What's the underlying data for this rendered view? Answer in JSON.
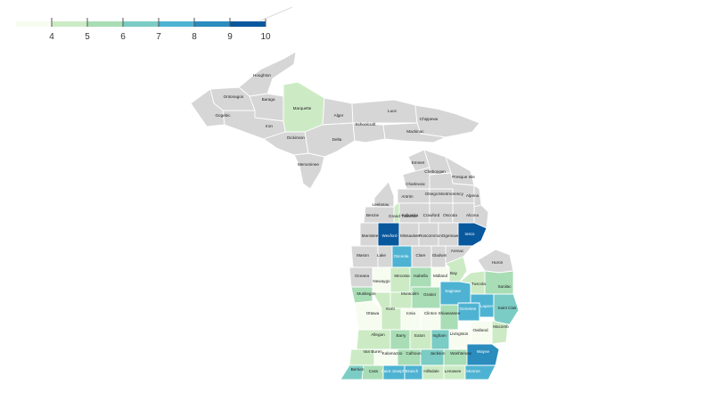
{
  "legend": {
    "stops": [
      "#f7fcf0",
      "#ccebc5",
      "#a8ddb5",
      "#7bccc4",
      "#4eb3d3",
      "#2b8cbe",
      "#08589e"
    ],
    "ticks": [
      "4",
      "5",
      "6",
      "7",
      "8",
      "9",
      "10"
    ]
  },
  "colors": {
    "nodata": "#d6d6d6",
    "border": "#ffffff"
  },
  "upper_peninsula": [
    {
      "name": "Houghton",
      "cls": 0
    },
    {
      "name": "Ontonagon",
      "cls": 0
    },
    {
      "name": "Baraga",
      "cls": 0
    },
    {
      "name": "Marquette",
      "cls": 2
    },
    {
      "name": "Alger",
      "cls": 0
    },
    {
      "name": "Luce",
      "cls": 0
    },
    {
      "name": "Chippewa",
      "cls": 0
    },
    {
      "name": "Gogebic",
      "cls": 0
    },
    {
      "name": "Iron",
      "cls": 0
    },
    {
      "name": "Dickinson",
      "cls": 0
    },
    {
      "name": "Delta",
      "cls": 0
    },
    {
      "name": "Schoolcraft",
      "cls": 0
    },
    {
      "name": "Mackinac",
      "cls": 0
    },
    {
      "name": "Menominee",
      "cls": 0
    }
  ],
  "lower_peninsula": [
    {
      "name": "Emmet",
      "cls": 0
    },
    {
      "name": "Cheboygan",
      "cls": 0
    },
    {
      "name": "Presque Isle",
      "cls": 0
    },
    {
      "name": "Charlevoix",
      "cls": 0
    },
    {
      "name": "Antrim",
      "cls": 0
    },
    {
      "name": "Otsego",
      "cls": 0
    },
    {
      "name": "Montmorency",
      "cls": 0
    },
    {
      "name": "Alpena",
      "cls": 0
    },
    {
      "name": "Leelanau",
      "cls": 0
    },
    {
      "name": "Grand Traverse",
      "cls": 2
    },
    {
      "name": "Benzie",
      "cls": 0
    },
    {
      "name": "Kalkaska",
      "cls": 0
    },
    {
      "name": "Crawford",
      "cls": 0
    },
    {
      "name": "Oscoda",
      "cls": 0
    },
    {
      "name": "Alcona",
      "cls": 0
    },
    {
      "name": "Manistee",
      "cls": 0
    },
    {
      "name": "Wexford",
      "cls": 7
    },
    {
      "name": "Missaukee",
      "cls": 0
    },
    {
      "name": "Roscommon",
      "cls": 0
    },
    {
      "name": "Ogemaw",
      "cls": 0
    },
    {
      "name": "Iosco",
      "cls": 7
    },
    {
      "name": "Arenac",
      "cls": 0
    },
    {
      "name": "Mason",
      "cls": 0
    },
    {
      "name": "Lake",
      "cls": 0
    },
    {
      "name": "Osceola",
      "cls": 5
    },
    {
      "name": "Clare",
      "cls": 0
    },
    {
      "name": "Gladwin",
      "cls": 0
    },
    {
      "name": "Oceana",
      "cls": 0
    },
    {
      "name": "Newaygo",
      "cls": 1
    },
    {
      "name": "Mecosta",
      "cls": 2
    },
    {
      "name": "Isabella",
      "cls": 3
    },
    {
      "name": "Midland",
      "cls": 1
    },
    {
      "name": "Bay",
      "cls": 2
    },
    {
      "name": "Huron",
      "cls": 0
    },
    {
      "name": "Muskegon",
      "cls": 3
    },
    {
      "name": "Montcalm",
      "cls": 2
    },
    {
      "name": "Gratiot",
      "cls": 3
    },
    {
      "name": "Saginaw",
      "cls": 5
    },
    {
      "name": "Tuscola",
      "cls": 2
    },
    {
      "name": "Sanilac",
      "cls": 3
    },
    {
      "name": "Ottawa",
      "cls": 1
    },
    {
      "name": "Kent",
      "cls": 2
    },
    {
      "name": "Ionia",
      "cls": 1
    },
    {
      "name": "Clinton",
      "cls": 1
    },
    {
      "name": "Shiawassee",
      "cls": 3
    },
    {
      "name": "Genesee",
      "cls": 5
    },
    {
      "name": "Lapeer",
      "cls": 5
    },
    {
      "name": "Saint Clair",
      "cls": 4
    },
    {
      "name": "Allegan",
      "cls": 2
    },
    {
      "name": "Barry",
      "cls": 3
    },
    {
      "name": "Eaton",
      "cls": 2
    },
    {
      "name": "Ingham",
      "cls": 4
    },
    {
      "name": "Livingston",
      "cls": 1
    },
    {
      "name": "Oakland",
      "cls": 1
    },
    {
      "name": "Macomb",
      "cls": 2
    },
    {
      "name": "Van Buren",
      "cls": 2
    },
    {
      "name": "Kalamazoo",
      "cls": 1
    },
    {
      "name": "Calhoun",
      "cls": 3
    },
    {
      "name": "Jackson",
      "cls": 4
    },
    {
      "name": "Washtenaw",
      "cls": 3
    },
    {
      "name": "Wayne",
      "cls": 6
    },
    {
      "name": "Berrien",
      "cls": 4
    },
    {
      "name": "Cass",
      "cls": 3
    },
    {
      "name": "Saint Joseph",
      "cls": 5
    },
    {
      "name": "Branch",
      "cls": 5
    },
    {
      "name": "Hillsdale",
      "cls": 2
    },
    {
      "name": "Lenawee",
      "cls": 2
    },
    {
      "name": "Monroe",
      "cls": 5
    }
  ]
}
